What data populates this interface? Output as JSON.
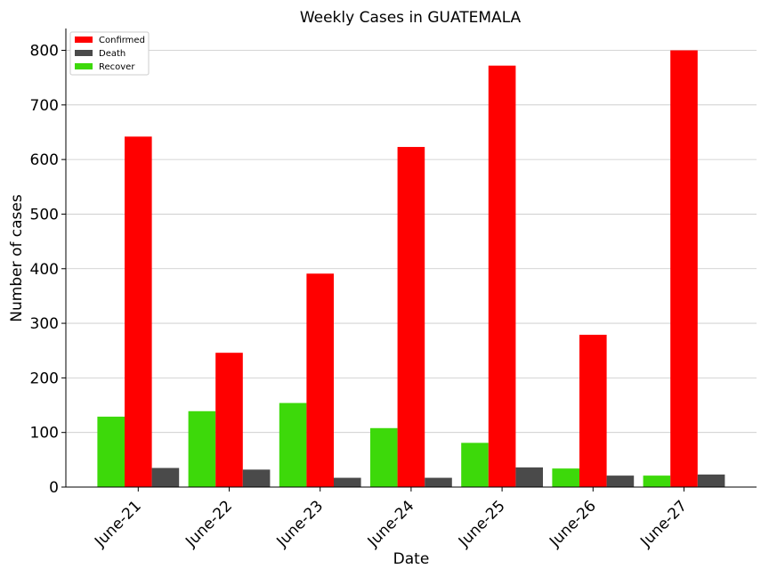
{
  "chart_data": {
    "type": "bar",
    "title": "Weekly Cases in GUATEMALA",
    "xlabel": "Date",
    "ylabel": "Number of cases",
    "categories": [
      "June-21",
      "June-22",
      "June-23",
      "June-24",
      "June-25",
      "June-26",
      "June-27"
    ],
    "ylim": [
      0,
      840
    ],
    "yticks": [
      0,
      100,
      200,
      300,
      400,
      500,
      600,
      700,
      800
    ],
    "grid": true,
    "legend_position": "top-left",
    "series": [
      {
        "name": "Recover",
        "color": "#3dd90a",
        "values": [
          129,
          139,
          154,
          108,
          81,
          34,
          21
        ]
      },
      {
        "name": "Confirmed",
        "color": "#ff0000",
        "values": [
          642,
          246,
          391,
          623,
          772,
          279,
          800
        ]
      },
      {
        "name": "Death",
        "color": "#4a4a4a",
        "values": [
          35,
          32,
          17,
          17,
          36,
          21,
          23
        ]
      }
    ],
    "legend_order": [
      "Confirmed",
      "Death",
      "Recover"
    ]
  }
}
